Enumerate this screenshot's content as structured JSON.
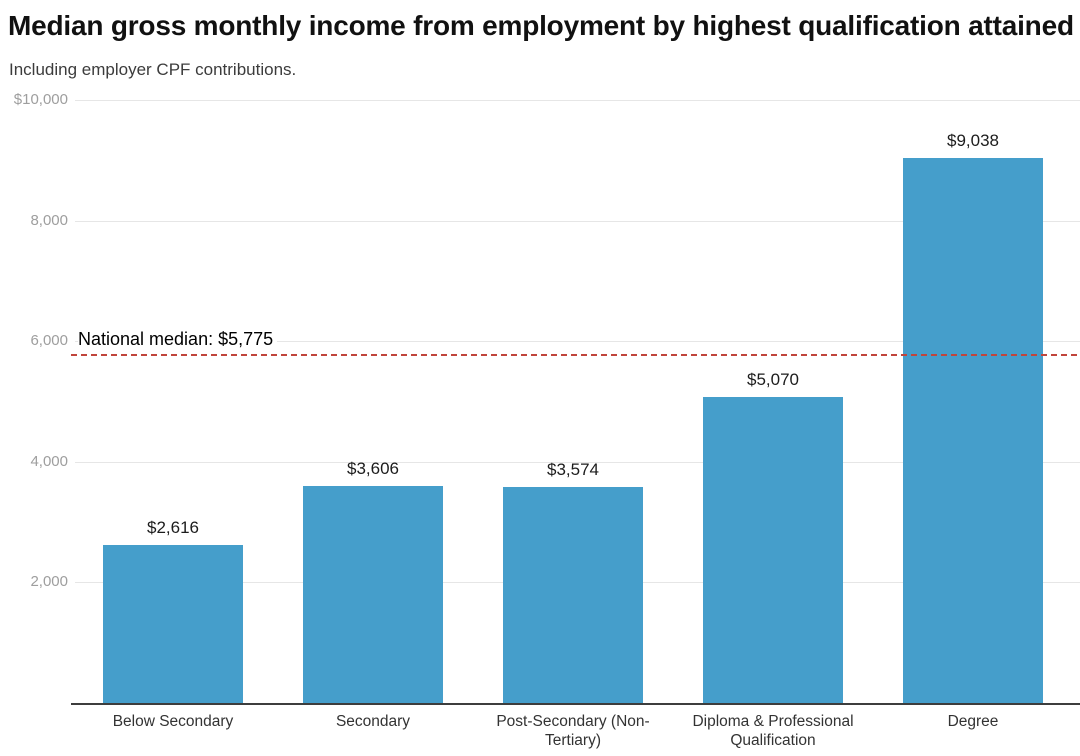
{
  "header": {
    "title": "Median gross monthly income from employment by highest qualification attained",
    "subtitle": "Including employer CPF contributions."
  },
  "annotation": {
    "label": "National median: $5,775",
    "value": 5775
  },
  "colors": {
    "bar": "#459ecb",
    "gridline": "#e6e6e6",
    "axis_line": "#3d3d3d",
    "tick_label": "#9e9e9e",
    "median_line": "#c0453c",
    "value_label": "#1c1c1c",
    "category_label": "#333333"
  },
  "chart_data": {
    "type": "bar",
    "title": "Median gross monthly income from employment by highest qualification attained",
    "subtitle": "Including employer CPF contributions.",
    "categories": [
      "Below Secondary",
      "Secondary",
      "Post-Secondary (Non-Tertiary)",
      "Diploma & Professional Qualification",
      "Degree"
    ],
    "values": [
      2616,
      3606,
      3574,
      5070,
      9038
    ],
    "value_labels": [
      "$2,616",
      "$3,606",
      "$3,574",
      "$5,070",
      "$9,038"
    ],
    "xlabel": "",
    "ylabel": "",
    "ylim": [
      0,
      10000
    ],
    "yticks": [
      {
        "value": 10000,
        "label": "$10,000"
      },
      {
        "value": 8000,
        "label": "8,000"
      },
      {
        "value": 6000,
        "label": "6,000"
      },
      {
        "value": 4000,
        "label": "4,000"
      },
      {
        "value": 2000,
        "label": "2,000"
      }
    ],
    "grid": "horizontal",
    "legend": "none",
    "annotation_line": {
      "label": "National median: $5,775",
      "value": 5775
    }
  }
}
